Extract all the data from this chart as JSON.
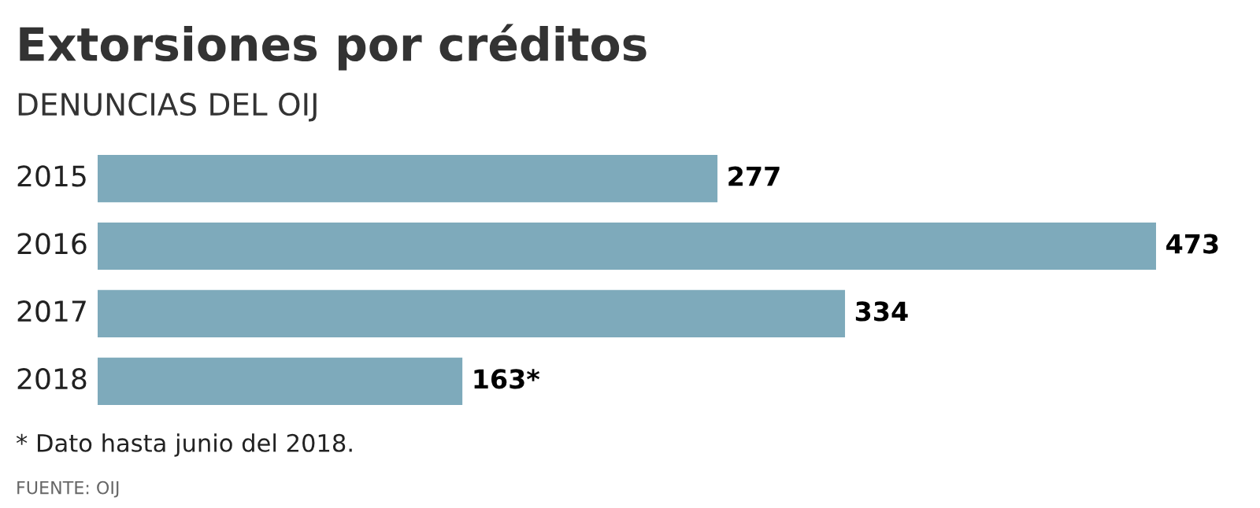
{
  "chart_data": {
    "type": "bar",
    "orientation": "horizontal",
    "title": "Extorsiones por créditos",
    "subtitle": "DENUNCIAS DEL OIJ",
    "categories": [
      "2015",
      "2016",
      "2017",
      "2018"
    ],
    "values": [
      277,
      473,
      334,
      163
    ],
    "value_labels": [
      "277",
      "473",
      "334",
      "163*"
    ],
    "color": "#7eaabb",
    "annotations": [
      "* Dato hasta junio del 2018.",
      "FUENTE: OIJ"
    ]
  }
}
